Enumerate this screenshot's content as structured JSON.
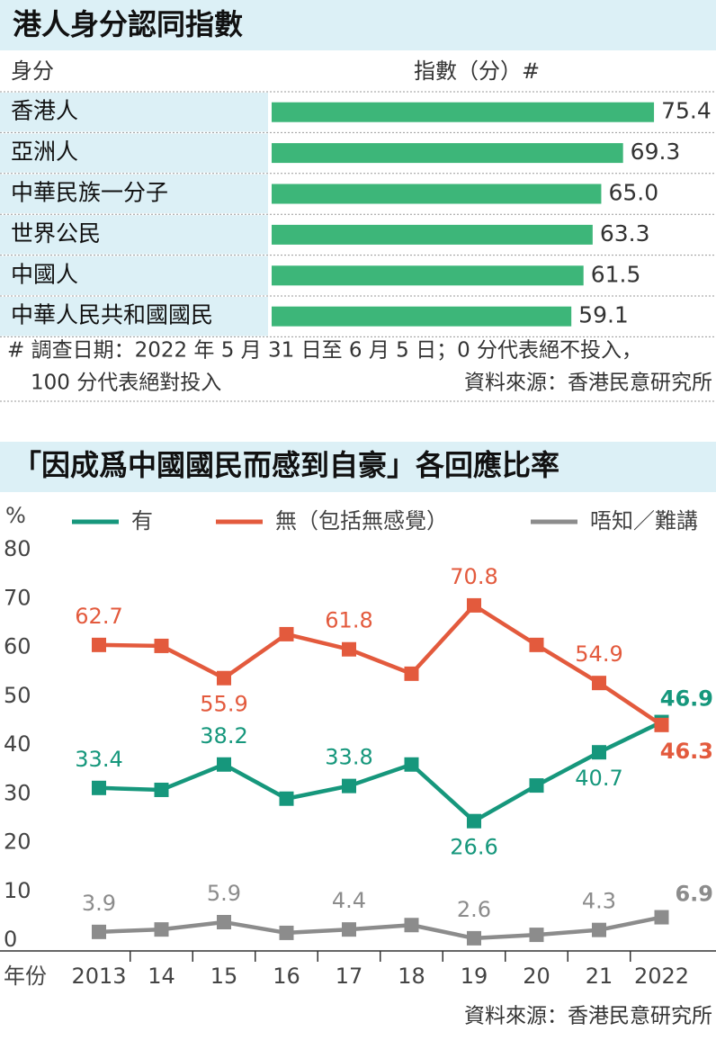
{
  "chart_data": [
    {
      "type": "bar",
      "title": "港人身分認同指數",
      "category_label": "身分",
      "value_label": "指數（分）#",
      "categories": [
        "香港人",
        "亞洲人",
        "中華民族一分子",
        "世界公民",
        "中國人",
        "中華人民共和國國民"
      ],
      "values": [
        75.4,
        69.3,
        65.0,
        63.3,
        61.5,
        59.1
      ],
      "value_labels": [
        "75.4",
        "69.3",
        "65.0",
        "63.3",
        "61.5",
        "59.1"
      ],
      "color": "#3db679",
      "xlim": [
        0,
        80
      ],
      "footnote": [
        "# 調查日期：2022 年 5 月 31 日至 6 月 5 日；0 分代表絕不投入，",
        "100 分代表絕對投入"
      ],
      "source": "資料來源：香港民意研究所"
    },
    {
      "type": "line",
      "title": "「因成爲中國國民而感到自豪」各回應比率",
      "y_label": "%",
      "x_label": "年份",
      "categories": [
        "2013",
        "14",
        "15",
        "16",
        "17",
        "18",
        "19",
        "20",
        "21",
        "2022"
      ],
      "ylim": [
        0,
        80
      ],
      "yticks": [
        0,
        10,
        20,
        30,
        40,
        50,
        60,
        70,
        80
      ],
      "series": [
        {
          "name": "有",
          "color": "#16977c",
          "values": [
            33.4,
            33.0,
            38.2,
            31.2,
            33.8,
            38.2,
            26.6,
            33.9,
            40.7,
            46.9
          ],
          "value_labels": [
            "33.4",
            null,
            "38.2",
            null,
            "33.8",
            null,
            "26.6",
            null,
            "40.7",
            "46.9"
          ]
        },
        {
          "name": "無（包括無感覺）",
          "color": "#e35a3d",
          "values": [
            62.7,
            62.5,
            55.9,
            64.9,
            61.8,
            56.8,
            70.8,
            62.7,
            54.9,
            46.3
          ],
          "value_labels": [
            "62.7",
            null,
            "55.9",
            null,
            "61.8",
            null,
            "70.8",
            null,
            "54.9",
            "46.3"
          ]
        },
        {
          "name": "唔知／難講",
          "color": "#8c8c8c",
          "values": [
            3.9,
            4.4,
            5.9,
            3.7,
            4.4,
            5.3,
            2.6,
            3.3,
            4.3,
            6.9
          ],
          "value_labels": [
            "3.9",
            null,
            "5.9",
            null,
            "4.4",
            null,
            "2.6",
            null,
            "4.3",
            "6.9"
          ]
        }
      ],
      "source": "資料來源：香港民意研究所"
    }
  ]
}
